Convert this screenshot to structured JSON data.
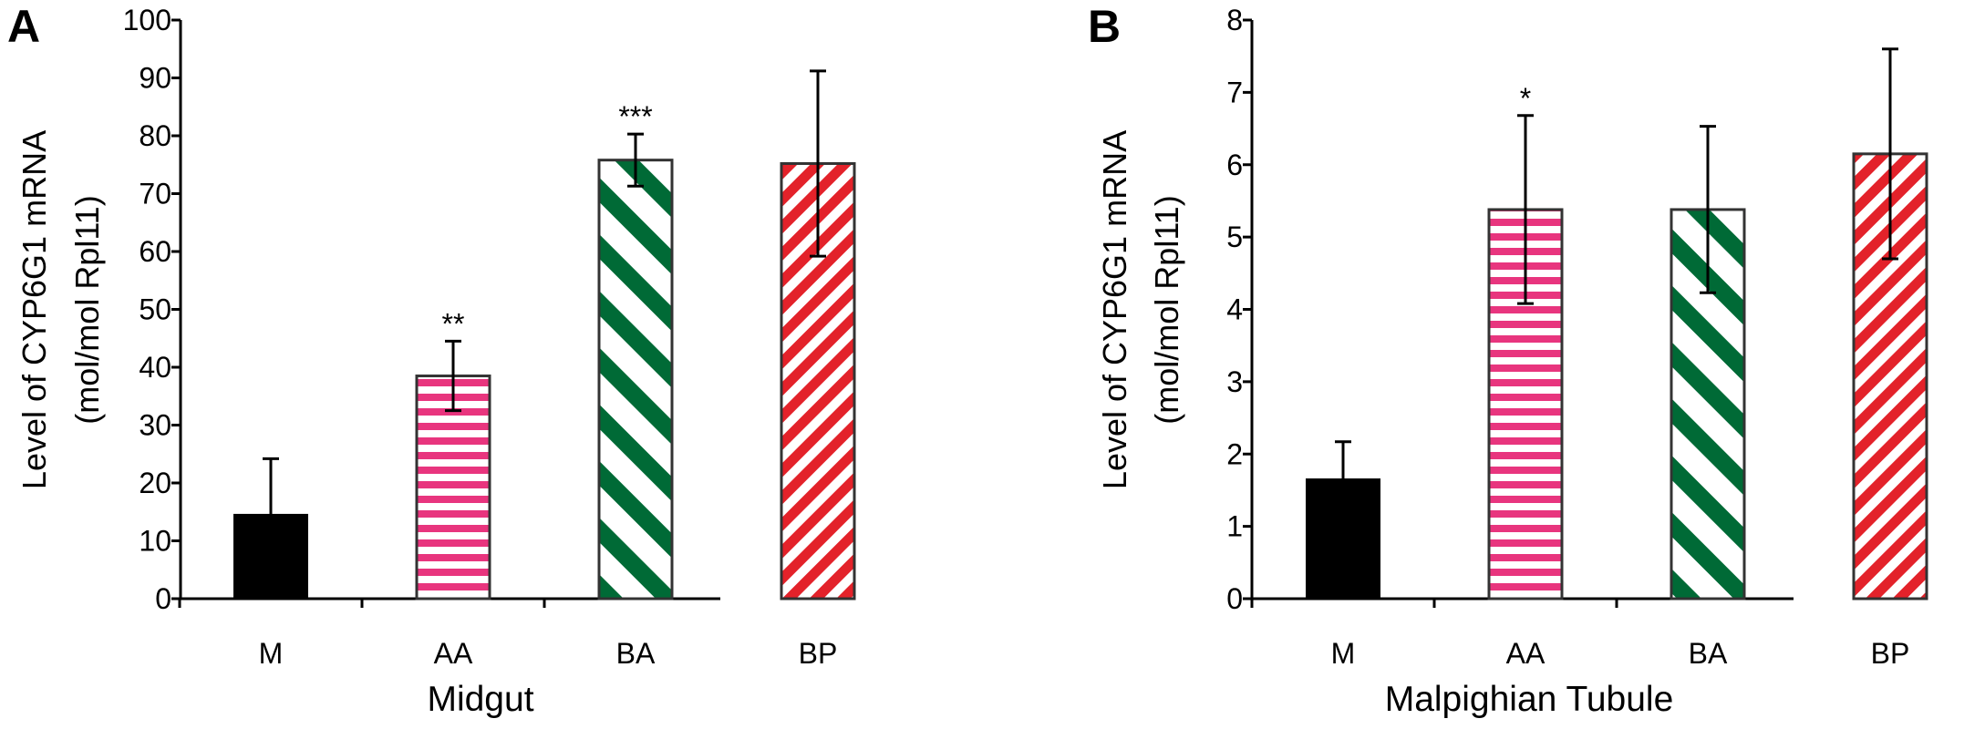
{
  "chart_data": [
    {
      "type": "bar",
      "panel": "A",
      "categories": [
        "M",
        "AA",
        "BA",
        "BP"
      ],
      "values": [
        14.5,
        38.5,
        75.8,
        75.2
      ],
      "errors": [
        9.7,
        6.0,
        4.5,
        16.0
      ],
      "significance": [
        "",
        "**",
        "***",
        ""
      ],
      "xlabel": "Midgut",
      "ylabel": [
        "Level of CYP6G1 mRNA",
        "(mol/mol Rpl11)"
      ],
      "ylim": [
        0,
        100
      ],
      "yticks": [
        "0",
        "10",
        "20",
        "30",
        "40",
        "50",
        "60",
        "70",
        "80",
        "90",
        "100"
      ],
      "grid": false
    },
    {
      "type": "bar",
      "panel": "B",
      "categories": [
        "M",
        "AA",
        "BA",
        "BP"
      ],
      "values": [
        1.65,
        5.38,
        5.38,
        6.15
      ],
      "errors": [
        0.52,
        1.3,
        1.15,
        1.45
      ],
      "significance": [
        "",
        "*",
        "",
        ""
      ],
      "xlabel": "Malpighian Tubule",
      "ylabel": [
        "Level of CYP6G1 mRNA",
        "(mol/mol Rpl11)"
      ],
      "ylim": [
        0,
        8
      ],
      "yticks": [
        "0",
        "1",
        "2",
        "3",
        "4",
        "5",
        "6",
        "7",
        "8"
      ],
      "grid": false
    }
  ],
  "bar_styles": [
    {
      "name": "solid-black",
      "color": "#000000"
    },
    {
      "name": "pink-horizontal-stripes",
      "color": "#e8357e"
    },
    {
      "name": "green-diagonal-stripes",
      "color": "#006a36"
    },
    {
      "name": "red-diagonal-stripes",
      "color": "#e3222a"
    }
  ]
}
